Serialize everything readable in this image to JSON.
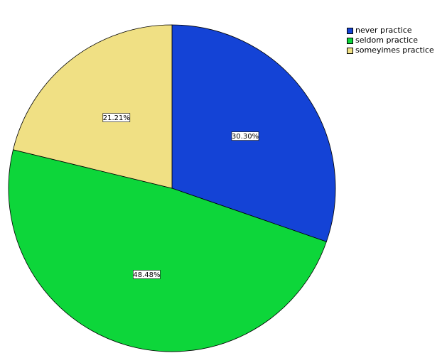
{
  "chart_data": {
    "type": "pie",
    "categories": [
      "never practice",
      "seldom practice",
      "someyimes practice"
    ],
    "values": [
      30.3,
      48.48,
      21.21
    ],
    "labels": [
      "30.30%",
      "48.48%",
      "21.21%"
    ],
    "colors": [
      "#1443d6",
      "#0dd63a",
      "#f0e084"
    ],
    "start_angle": "12 o'clock",
    "direction": "clockwise",
    "legend_position": "top-right"
  }
}
